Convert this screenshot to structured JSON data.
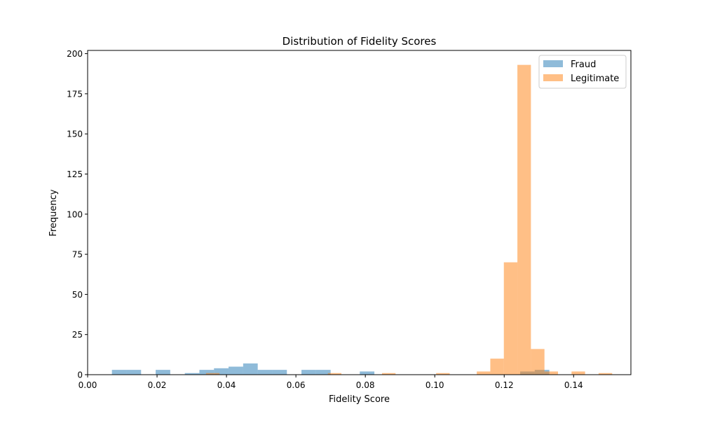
{
  "chart_data": {
    "type": "bar",
    "title": "Distribution of Fidelity Scores",
    "xlabel": "Fidelity Score",
    "ylabel": "Frequency",
    "xlim": [
      0.0,
      0.1565
    ],
    "ylim": [
      0,
      202
    ],
    "xticks": [
      0.0,
      0.02,
      0.04,
      0.06,
      0.08,
      0.1,
      0.12,
      0.14
    ],
    "xtick_labels": [
      "0.00",
      "0.02",
      "0.04",
      "0.06",
      "0.08",
      "0.10",
      "0.12",
      "0.14"
    ],
    "yticks": [
      0,
      25,
      50,
      75,
      100,
      125,
      150,
      175,
      200
    ],
    "ytick_labels": [
      "0",
      "25",
      "50",
      "75",
      "100",
      "125",
      "150",
      "175",
      "200"
    ],
    "legend": {
      "position": "top-right"
    },
    "series": [
      {
        "name": "Fraud",
        "color": "#1f77b4",
        "opacity": 0.5,
        "bins": [
          [
            0.007,
            0.0112,
            3
          ],
          [
            0.0112,
            0.0154,
            3
          ],
          [
            0.0196,
            0.0238,
            3
          ],
          [
            0.028,
            0.0322,
            1
          ],
          [
            0.0322,
            0.0364,
            3
          ],
          [
            0.0364,
            0.0406,
            4
          ],
          [
            0.0406,
            0.0448,
            5
          ],
          [
            0.0448,
            0.049,
            7
          ],
          [
            0.049,
            0.0532,
            3
          ],
          [
            0.0532,
            0.0574,
            3
          ],
          [
            0.0616,
            0.0658,
            3
          ],
          [
            0.0658,
            0.07,
            3
          ],
          [
            0.0784,
            0.0826,
            2
          ],
          [
            0.1246,
            0.1288,
            2
          ],
          [
            0.1288,
            0.133,
            3
          ]
        ]
      },
      {
        "name": "Legitimate",
        "color": "#ff7f0e",
        "opacity": 0.5,
        "bins": [
          [
            0.0341,
            0.038,
            1
          ],
          [
            0.0692,
            0.0731,
            1
          ],
          [
            0.0848,
            0.0887,
            1
          ],
          [
            0.1004,
            0.1043,
            1
          ],
          [
            0.1121,
            0.116,
            2
          ],
          [
            0.116,
            0.1199,
            10
          ],
          [
            0.1199,
            0.1238,
            70
          ],
          [
            0.1238,
            0.1277,
            193
          ],
          [
            0.1277,
            0.1316,
            16
          ],
          [
            0.1316,
            0.1355,
            2
          ],
          [
            0.1394,
            0.1433,
            2
          ],
          [
            0.1472,
            0.1511,
            1
          ]
        ]
      }
    ]
  }
}
